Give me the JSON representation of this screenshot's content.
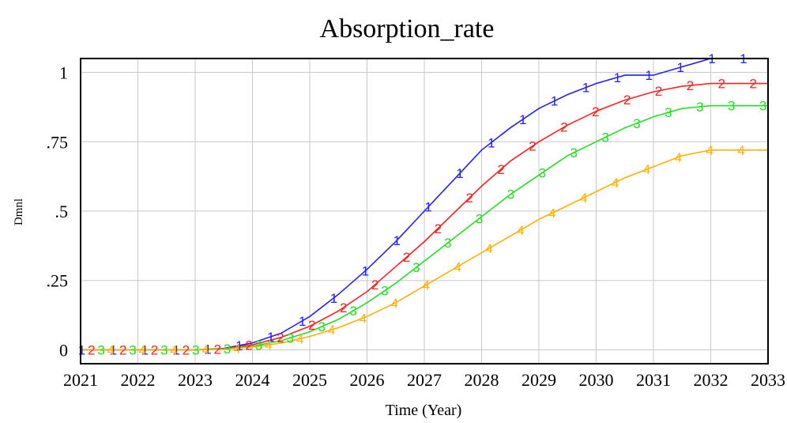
{
  "chart_data": {
    "type": "line",
    "title": "Absorption_rate",
    "xlabel": "Time (Year)",
    "ylabel": "Dmnl",
    "x_ticks": [
      "2021",
      "2022",
      "2023",
      "2024",
      "2025",
      "2026",
      "2027",
      "2028",
      "2029",
      "2030",
      "2031",
      "2032",
      "2033"
    ],
    "y_ticks": [
      "0",
      ".25",
      ".5",
      ".75",
      "1"
    ],
    "xlim": [
      2021,
      2033
    ],
    "ylim": [
      -0.05,
      1.05
    ],
    "grid": true,
    "x": [
      2021,
      2021.5,
      2022,
      2022.5,
      2023,
      2023.5,
      2024,
      2024.5,
      2025,
      2025.5,
      2026,
      2026.5,
      2027,
      2027.5,
      2028,
      2028.5,
      2029,
      2029.5,
      2030,
      2030.5,
      2031,
      2031.5,
      2032,
      2032.5,
      2033
    ],
    "series": [
      {
        "name": "1",
        "color": "#2020ff",
        "values": [
          0,
          0,
          0,
          0,
          0,
          0.005,
          0.025,
          0.06,
          0.12,
          0.2,
          0.29,
          0.39,
          0.5,
          0.61,
          0.72,
          0.8,
          0.87,
          0.92,
          0.96,
          0.99,
          0.99,
          1.02,
          1.05,
          1.05,
          1.05
        ]
      },
      {
        "name": "2",
        "color": "#ff2020",
        "values": [
          0,
          0,
          0,
          0,
          0,
          0.004,
          0.018,
          0.045,
          0.085,
          0.14,
          0.21,
          0.3,
          0.39,
          0.49,
          0.59,
          0.68,
          0.75,
          0.81,
          0.86,
          0.9,
          0.93,
          0.95,
          0.96,
          0.96,
          0.96
        ]
      },
      {
        "name": "3",
        "color": "#20e020",
        "values": [
          0,
          0,
          0,
          0,
          0,
          0.003,
          0.013,
          0.033,
          0.065,
          0.11,
          0.17,
          0.24,
          0.32,
          0.4,
          0.48,
          0.56,
          0.63,
          0.7,
          0.75,
          0.8,
          0.84,
          0.87,
          0.88,
          0.88,
          0.88
        ]
      },
      {
        "name": "4",
        "color": "#ffb000",
        "values": [
          0,
          0,
          0,
          0,
          0,
          0.002,
          0.01,
          0.024,
          0.048,
          0.08,
          0.12,
          0.17,
          0.23,
          0.29,
          0.35,
          0.41,
          0.47,
          0.52,
          0.57,
          0.62,
          0.66,
          0.7,
          0.72,
          0.72,
          0.72
        ]
      }
    ]
  }
}
